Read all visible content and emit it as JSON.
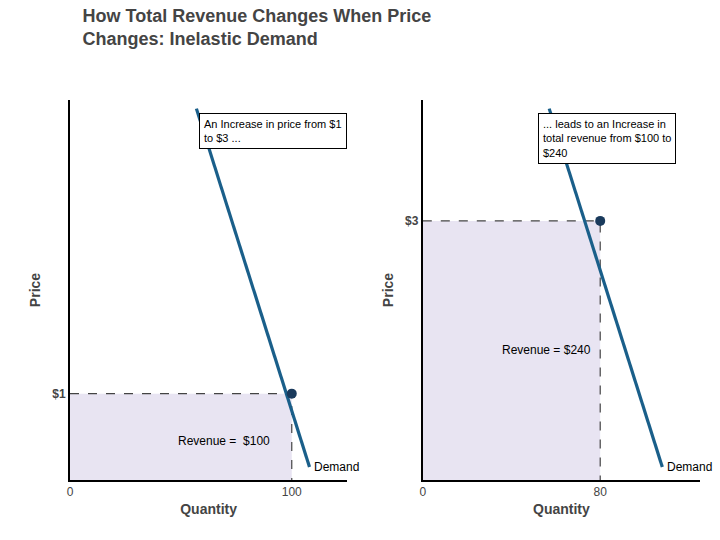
{
  "chart_data": [
    {
      "type": "line",
      "title": "How Total Revenue Changes When Price\nChanges: Inelastic Demand",
      "xlabel": "Quantity",
      "ylabel": "Price",
      "xlim": [
        0,
        125
      ],
      "ylim": [
        0,
        4.4
      ],
      "xticks": [
        0,
        100
      ],
      "yticks": [
        {
          "value": 1.0,
          "label": "$1"
        }
      ],
      "grid": false,
      "series": [
        {
          "type": "area",
          "x": [
            0,
            100
          ],
          "values": [
            1.0,
            1.0
          ],
          "color": "#E8E4F2"
        },
        {
          "type": "line",
          "x": [
            0,
            100,
            100
          ],
          "values": [
            1.0,
            1.0,
            0
          ],
          "color": "#444444",
          "line_style": "dashed"
        },
        {
          "type": "line",
          "x": [
            57,
            108
          ],
          "values": [
            4.3,
            0.15
          ],
          "color": "#1A5F8A"
        },
        {
          "type": "scatter",
          "x": [
            100
          ],
          "values": [
            1.0
          ],
          "color": "#1A3A5C"
        }
      ],
      "labels": [
        {
          "text": "Revenue =  $100",
          "x": 48,
          "y": 0.45
        },
        {
          "text": "Demand",
          "x": 109,
          "y": 0.15
        }
      ],
      "notes": [
        {
          "text": "An Increase in price from $1\nto $3 ...",
          "x": 58,
          "y": 4.25
        }
      ]
    },
    {
      "type": "line",
      "xlabel": "Quantity",
      "ylabel": "Price",
      "xlim": [
        0,
        125
      ],
      "ylim": [
        0,
        4.4
      ],
      "xticks": [
        0,
        80
      ],
      "yticks": [
        {
          "value": 3.0,
          "label": "$3"
        }
      ],
      "grid": false,
      "series": [
        {
          "type": "area",
          "x": [
            0,
            80
          ],
          "values": [
            3.0,
            3.0
          ],
          "color": "#E8E4F2"
        },
        {
          "type": "line",
          "x": [
            0,
            80,
            80
          ],
          "values": [
            3.0,
            3.0,
            0
          ],
          "color": "#444444",
          "line_style": "dashed"
        },
        {
          "type": "line",
          "x": [
            57,
            108
          ],
          "values": [
            4.3,
            0.15
          ],
          "color": "#1A5F8A"
        },
        {
          "type": "scatter",
          "x": [
            80
          ],
          "values": [
            3.0
          ],
          "color": "#1A3A5C"
        }
      ],
      "labels": [
        {
          "text": "Revenue = $240",
          "x": 35,
          "y": 1.5
        },
        {
          "text": "Demand",
          "x": 109,
          "y": 0.15
        }
      ],
      "notes": [
        {
          "text": "... leads to an Increase in\ntotal revenue from $100 to\n$240",
          "x": 52,
          "y": 4.25
        }
      ]
    }
  ]
}
